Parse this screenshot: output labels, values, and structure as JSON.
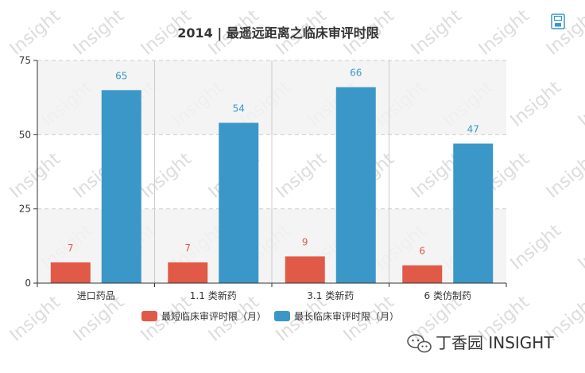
{
  "watermark": "Insight",
  "brand": {
    "icon": "wechat-icon",
    "text": "丁香园 INSIGHT"
  },
  "toolbar": {
    "save_icon": "save-icon"
  },
  "colors": {
    "short": "#e05a47",
    "long": "#3a97c8",
    "band": "#f2f2f2"
  },
  "chart_data": {
    "type": "bar",
    "title": "2014 |  最遥远距离之临床审评时限",
    "categories": [
      "进口药品",
      "1.1 类新药",
      "3.1 类新药",
      "6 类仿制药"
    ],
    "series": [
      {
        "name": "最短临床审评时限（月）",
        "values": [
          7,
          7,
          9,
          6
        ]
      },
      {
        "name": "最长临床审评时限（月）",
        "values": [
          65,
          54,
          66,
          47
        ]
      }
    ],
    "ylim": [
      0,
      75
    ],
    "yticks": [
      0,
      25,
      50,
      75
    ],
    "grid": true,
    "legend": "bottom"
  }
}
